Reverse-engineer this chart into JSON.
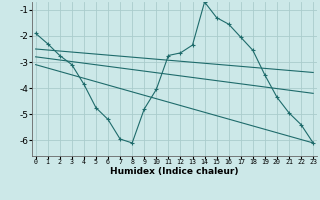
{
  "xlabel": "Humidex (Indice chaleur)",
  "bg_color": "#cce8e8",
  "grid_color": "#aacccc",
  "line_color": "#1e6b6b",
  "xlim": [
    -0.3,
    23.3
  ],
  "ylim": [
    -6.6,
    -0.7
  ],
  "yticks": [
    -6,
    -5,
    -4,
    -3,
    -2,
    -1
  ],
  "xticks": [
    0,
    1,
    2,
    3,
    4,
    5,
    6,
    7,
    8,
    9,
    10,
    11,
    12,
    13,
    14,
    15,
    16,
    17,
    18,
    19,
    20,
    21,
    22,
    23
  ],
  "line1_x": [
    0,
    1,
    2,
    3,
    4,
    5,
    6,
    7,
    8,
    9,
    10,
    11,
    12,
    13,
    14,
    15,
    16,
    17,
    18,
    19,
    20,
    21,
    22,
    23
  ],
  "line1_y": [
    -1.9,
    -2.3,
    -2.75,
    -3.1,
    -3.85,
    -4.75,
    -5.2,
    -5.95,
    -6.1,
    -4.8,
    -4.05,
    -2.75,
    -2.65,
    -2.35,
    -0.7,
    -1.3,
    -1.55,
    -2.05,
    -2.55,
    -3.5,
    -4.35,
    -4.95,
    -5.4,
    -6.1
  ],
  "line2_x": [
    0,
    23
  ],
  "line2_y": [
    -2.5,
    -3.4
  ],
  "line3_x": [
    0,
    23
  ],
  "line3_y": [
    -2.8,
    -4.2
  ],
  "line4_x": [
    0,
    23
  ],
  "line4_y": [
    -3.1,
    -6.1
  ]
}
